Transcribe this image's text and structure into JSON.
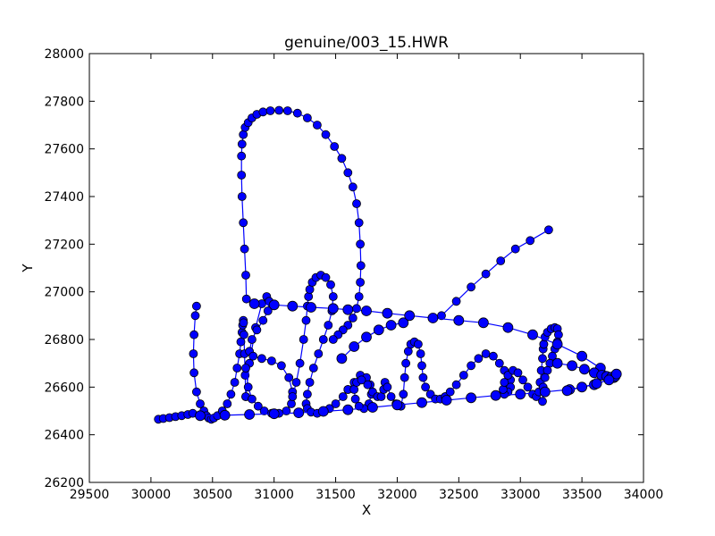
{
  "chart_data": {
    "type": "scatter",
    "title": "genuine/003_15.HWR",
    "xlabel": "X",
    "ylabel": "Y",
    "xlim": [
      29500,
      34000
    ],
    "ylim": [
      26200,
      28000
    ],
    "xticks": [
      "29500",
      "30000",
      "30500",
      "31000",
      "31500",
      "32000",
      "32500",
      "33000",
      "33500",
      "34000"
    ],
    "yticks": [
      "26200",
      "26400",
      "26600",
      "26800",
      "27000",
      "27200",
      "27400",
      "27600",
      "27800",
      "28000"
    ],
    "grid": false,
    "legend": "none",
    "marker_color": "#0000ff",
    "line_color": "#0000ff",
    "edge_color": "#000000",
    "series": [
      {
        "stroke": "V",
        "x": [
          30370,
          30360,
          30350,
          30345,
          30350,
          30370,
          30400,
          30430,
          30450,
          30470,
          30490,
          30510,
          30540,
          30580,
          30620,
          30650,
          30680,
          30700,
          30720,
          30730,
          30740,
          30745,
          30750,
          30752,
          30755,
          30760,
          30765,
          30770
        ],
        "y": [
          26940,
          26900,
          26820,
          26740,
          26660,
          26580,
          26530,
          26500,
          26480,
          26470,
          26465,
          26470,
          26480,
          26500,
          26530,
          26570,
          26620,
          26680,
          26740,
          26790,
          26830,
          26860,
          26880,
          26870,
          26820,
          26740,
          26650,
          26560
        ]
      },
      {
        "stroke": "B",
        "x": [
          30770,
          30800,
          30850,
          30900,
          30940,
          30960,
          30950,
          30910,
          30860,
          30820,
          30800,
          30830,
          30900,
          30980,
          31060,
          31120,
          31150,
          31140,
          31100,
          31040,
          30980,
          30920,
          30870,
          30820,
          30790,
          30770
        ],
        "y": [
          26560,
          26700,
          26850,
          26950,
          26980,
          26960,
          26920,
          26880,
          26840,
          26800,
          26750,
          26730,
          26720,
          26710,
          26690,
          26640,
          26580,
          26530,
          26500,
          26490,
          26490,
          26500,
          26520,
          26550,
          26600,
          26680
        ]
      },
      {
        "stroke": "l",
        "x": [
          31150,
          31180,
          31210,
          31240,
          31260,
          31270,
          31280,
          31290,
          31310,
          31340,
          31380,
          31420,
          31460,
          31480,
          31470,
          31440,
          31400,
          31360,
          31320,
          31290,
          31270,
          31260,
          31270,
          31300,
          31350,
          31400,
          31450,
          31500,
          31560,
          31600
        ],
        "y": [
          26560,
          26620,
          26700,
          26800,
          26880,
          26940,
          26980,
          27010,
          27040,
          27060,
          27070,
          27060,
          27030,
          26980,
          26920,
          26860,
          26800,
          26740,
          26680,
          26620,
          26570,
          26530,
          26510,
          26495,
          26490,
          26495,
          26510,
          26530,
          26560,
          26590
        ]
      },
      {
        "stroke": "a",
        "x": [
          31600,
          31650,
          31700,
          31750,
          31780,
          31790,
          31770,
          31730,
          31690,
          31660,
          31650,
          31670,
          31710,
          31760,
          31800,
          31840,
          31870,
          31890,
          31900,
          31920,
          31950,
          31990,
          32030
        ],
        "y": [
          26590,
          26620,
          26650,
          26640,
          26610,
          26570,
          26530,
          26510,
          26520,
          26550,
          26590,
          26620,
          26630,
          26610,
          26580,
          26560,
          26560,
          26590,
          26620,
          26600,
          26560,
          26530,
          26520
        ]
      },
      {
        "stroke": "n",
        "x": [
          32030,
          32050,
          32060,
          32070,
          32090,
          32110,
          32140,
          32170,
          32190,
          32200,
          32210,
          32230,
          32270,
          32310,
          32350,
          32390
        ],
        "y": [
          26520,
          26570,
          26640,
          26700,
          26750,
          26780,
          26790,
          26780,
          26740,
          26690,
          26640,
          26600,
          26570,
          26550,
          26550,
          26560
        ]
      },
      {
        "stroke": "t-e-r",
        "x": [
          32390,
          32430,
          32480,
          32540,
          32600,
          32660,
          32720,
          32780,
          32830,
          32870,
          32900,
          32920,
          32920,
          32900,
          32870,
          32860,
          32870,
          32900,
          32940,
          32980,
          33020,
          33060,
          33100,
          33130,
          33150,
          33160,
          33170,
          33180,
          33185,
          33190
        ],
        "y": [
          26560,
          26580,
          26610,
          26650,
          26690,
          26720,
          26740,
          26730,
          26700,
          26670,
          26650,
          26630,
          26600,
          26580,
          26570,
          26590,
          26620,
          26650,
          26670,
          26660,
          26630,
          26600,
          26570,
          26560,
          26580,
          26620,
          26670,
          26720,
          26760,
          26780
        ]
      },
      {
        "stroke": "r-tail",
        "x": [
          33190,
          33200,
          33220,
          33250,
          33280,
          33300,
          33310,
          33300,
          33280,
          33260,
          33240,
          33220,
          33200,
          33185,
          33180
        ],
        "y": [
          26780,
          26810,
          26830,
          26845,
          26850,
          26845,
          26820,
          26790,
          26760,
          26730,
          26700,
          26670,
          26640,
          26600,
          26540
        ]
      },
      {
        "stroke": "top-loop",
        "x": [
          30775,
          30770,
          30760,
          30750,
          30740,
          30735,
          30735,
          30740,
          30750,
          30765,
          30790,
          30820,
          30860,
          30910,
          30970,
          31040,
          31110,
          31190,
          31270,
          31350,
          31420,
          31490,
          31550,
          31600,
          31640,
          31670,
          31690,
          31700,
          31705,
          31700,
          31690,
          31670,
          31640,
          31600,
          31560,
          31520,
          31480
        ],
        "y": [
          26970,
          27070,
          27180,
          27290,
          27400,
          27490,
          27570,
          27620,
          27660,
          27690,
          27710,
          27730,
          27745,
          27755,
          27760,
          27762,
          27760,
          27750,
          27730,
          27700,
          27660,
          27610,
          27560,
          27500,
          27440,
          27370,
          27290,
          27200,
          27110,
          27040,
          26980,
          26930,
          26890,
          26860,
          26840,
          26820,
          26800
        ]
      },
      {
        "stroke": "lead-in",
        "x": [
          30060,
          30100,
          30150,
          30200,
          30250,
          30300,
          30340
        ],
        "y": [
          26465,
          26468,
          26472,
          26476,
          26480,
          26485,
          26490
        ]
      },
      {
        "stroke": "connector",
        "x": [
          31550,
          31650,
          31750,
          31850,
          31950,
          32050
        ],
        "y": [
          26720,
          26770,
          26810,
          26840,
          26860,
          26870
        ]
      },
      {
        "stroke": "upstroke",
        "x": [
          32360,
          32480,
          32600,
          32720,
          32840,
          32960,
          33080,
          33230
        ],
        "y": [
          26900,
          26960,
          27020,
          27075,
          27130,
          27180,
          27215,
          27260
        ]
      },
      {
        "stroke": "cross-bar",
        "x": [
          30840,
          31000,
          31150,
          31300,
          31480,
          31600,
          31750,
          31920,
          32100,
          32290,
          32500,
          32700,
          32900,
          33100,
          33300,
          33500,
          33650,
          33760
        ],
        "y": [
          26950,
          26945,
          26940,
          26935,
          26930,
          26925,
          26920,
          26910,
          26900,
          26890,
          26880,
          26870,
          26850,
          26820,
          26780,
          26730,
          26680,
          26645
        ]
      },
      {
        "stroke": "return-stroke",
        "x": [
          33760,
          33600,
          33400,
          33200,
          33000,
          32800,
          32600,
          32400,
          32200,
          32000,
          31800,
          31600,
          31400,
          31200,
          31000,
          30800,
          30600,
          30400
        ],
        "y": [
          26640,
          26610,
          26590,
          26580,
          26570,
          26565,
          26555,
          26545,
          26535,
          26525,
          26515,
          26505,
          26498,
          26492,
          26488,
          26485,
          26482,
          26480
        ]
      },
      {
        "stroke": "tail-cluster",
        "x": [
          33300,
          33420,
          33520,
          33600,
          33660,
          33700,
          33740,
          33770,
          33780,
          33720,
          33620,
          33500,
          33380
        ],
        "y": [
          26700,
          26690,
          26675,
          26660,
          26650,
          26645,
          26642,
          26645,
          26655,
          26630,
          26615,
          26600,
          26585
        ]
      }
    ]
  }
}
